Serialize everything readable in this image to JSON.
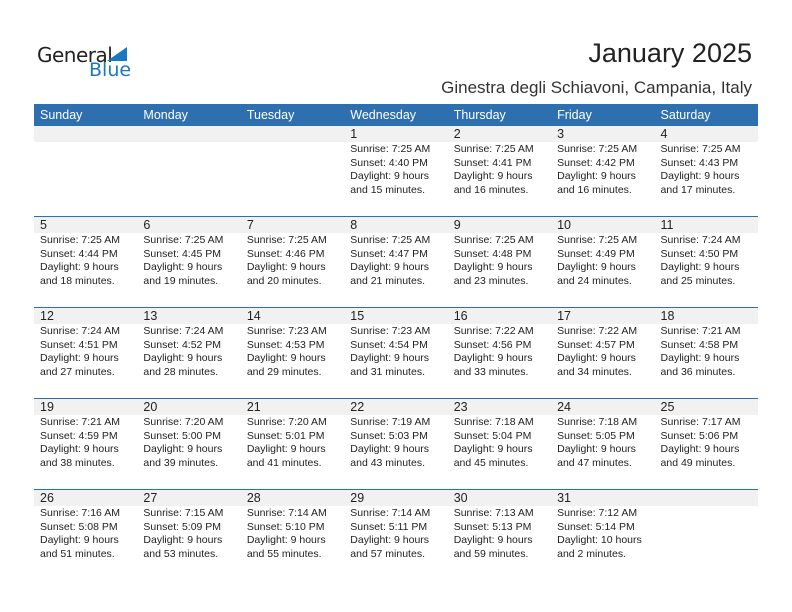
{
  "logo": {
    "text1": "General",
    "text2": "Blue"
  },
  "title": "January 2025",
  "subtitle": "Ginestra degli Schiavoni, Campania, Italy",
  "colors": {
    "header": "#2e6fb0",
    "day_band": "#f1f1f1",
    "logo_blue": "#1a78c2"
  },
  "weekdays": [
    "Sunday",
    "Monday",
    "Tuesday",
    "Wednesday",
    "Thursday",
    "Friday",
    "Saturday"
  ],
  "weeks": [
    [
      null,
      null,
      null,
      {
        "day": "1",
        "sunrise": "Sunrise: 7:25 AM",
        "sunset": "Sunset: 4:40 PM",
        "daylight1": "Daylight: 9 hours",
        "daylight2": "and 15 minutes."
      },
      {
        "day": "2",
        "sunrise": "Sunrise: 7:25 AM",
        "sunset": "Sunset: 4:41 PM",
        "daylight1": "Daylight: 9 hours",
        "daylight2": "and 16 minutes."
      },
      {
        "day": "3",
        "sunrise": "Sunrise: 7:25 AM",
        "sunset": "Sunset: 4:42 PM",
        "daylight1": "Daylight: 9 hours",
        "daylight2": "and 16 minutes."
      },
      {
        "day": "4",
        "sunrise": "Sunrise: 7:25 AM",
        "sunset": "Sunset: 4:43 PM",
        "daylight1": "Daylight: 9 hours",
        "daylight2": "and 17 minutes."
      }
    ],
    [
      {
        "day": "5",
        "sunrise": "Sunrise: 7:25 AM",
        "sunset": "Sunset: 4:44 PM",
        "daylight1": "Daylight: 9 hours",
        "daylight2": "and 18 minutes."
      },
      {
        "day": "6",
        "sunrise": "Sunrise: 7:25 AM",
        "sunset": "Sunset: 4:45 PM",
        "daylight1": "Daylight: 9 hours",
        "daylight2": "and 19 minutes."
      },
      {
        "day": "7",
        "sunrise": "Sunrise: 7:25 AM",
        "sunset": "Sunset: 4:46 PM",
        "daylight1": "Daylight: 9 hours",
        "daylight2": "and 20 minutes."
      },
      {
        "day": "8",
        "sunrise": "Sunrise: 7:25 AM",
        "sunset": "Sunset: 4:47 PM",
        "daylight1": "Daylight: 9 hours",
        "daylight2": "and 21 minutes."
      },
      {
        "day": "9",
        "sunrise": "Sunrise: 7:25 AM",
        "sunset": "Sunset: 4:48 PM",
        "daylight1": "Daylight: 9 hours",
        "daylight2": "and 23 minutes."
      },
      {
        "day": "10",
        "sunrise": "Sunrise: 7:25 AM",
        "sunset": "Sunset: 4:49 PM",
        "daylight1": "Daylight: 9 hours",
        "daylight2": "and 24 minutes."
      },
      {
        "day": "11",
        "sunrise": "Sunrise: 7:24 AM",
        "sunset": "Sunset: 4:50 PM",
        "daylight1": "Daylight: 9 hours",
        "daylight2": "and 25 minutes."
      }
    ],
    [
      {
        "day": "12",
        "sunrise": "Sunrise: 7:24 AM",
        "sunset": "Sunset: 4:51 PM",
        "daylight1": "Daylight: 9 hours",
        "daylight2": "and 27 minutes."
      },
      {
        "day": "13",
        "sunrise": "Sunrise: 7:24 AM",
        "sunset": "Sunset: 4:52 PM",
        "daylight1": "Daylight: 9 hours",
        "daylight2": "and 28 minutes."
      },
      {
        "day": "14",
        "sunrise": "Sunrise: 7:23 AM",
        "sunset": "Sunset: 4:53 PM",
        "daylight1": "Daylight: 9 hours",
        "daylight2": "and 29 minutes."
      },
      {
        "day": "15",
        "sunrise": "Sunrise: 7:23 AM",
        "sunset": "Sunset: 4:54 PM",
        "daylight1": "Daylight: 9 hours",
        "daylight2": "and 31 minutes."
      },
      {
        "day": "16",
        "sunrise": "Sunrise: 7:22 AM",
        "sunset": "Sunset: 4:56 PM",
        "daylight1": "Daylight: 9 hours",
        "daylight2": "and 33 minutes."
      },
      {
        "day": "17",
        "sunrise": "Sunrise: 7:22 AM",
        "sunset": "Sunset: 4:57 PM",
        "daylight1": "Daylight: 9 hours",
        "daylight2": "and 34 minutes."
      },
      {
        "day": "18",
        "sunrise": "Sunrise: 7:21 AM",
        "sunset": "Sunset: 4:58 PM",
        "daylight1": "Daylight: 9 hours",
        "daylight2": "and 36 minutes."
      }
    ],
    [
      {
        "day": "19",
        "sunrise": "Sunrise: 7:21 AM",
        "sunset": "Sunset: 4:59 PM",
        "daylight1": "Daylight: 9 hours",
        "daylight2": "and 38 minutes."
      },
      {
        "day": "20",
        "sunrise": "Sunrise: 7:20 AM",
        "sunset": "Sunset: 5:00 PM",
        "daylight1": "Daylight: 9 hours",
        "daylight2": "and 39 minutes."
      },
      {
        "day": "21",
        "sunrise": "Sunrise: 7:20 AM",
        "sunset": "Sunset: 5:01 PM",
        "daylight1": "Daylight: 9 hours",
        "daylight2": "and 41 minutes."
      },
      {
        "day": "22",
        "sunrise": "Sunrise: 7:19 AM",
        "sunset": "Sunset: 5:03 PM",
        "daylight1": "Daylight: 9 hours",
        "daylight2": "and 43 minutes."
      },
      {
        "day": "23",
        "sunrise": "Sunrise: 7:18 AM",
        "sunset": "Sunset: 5:04 PM",
        "daylight1": "Daylight: 9 hours",
        "daylight2": "and 45 minutes."
      },
      {
        "day": "24",
        "sunrise": "Sunrise: 7:18 AM",
        "sunset": "Sunset: 5:05 PM",
        "daylight1": "Daylight: 9 hours",
        "daylight2": "and 47 minutes."
      },
      {
        "day": "25",
        "sunrise": "Sunrise: 7:17 AM",
        "sunset": "Sunset: 5:06 PM",
        "daylight1": "Daylight: 9 hours",
        "daylight2": "and 49 minutes."
      }
    ],
    [
      {
        "day": "26",
        "sunrise": "Sunrise: 7:16 AM",
        "sunset": "Sunset: 5:08 PM",
        "daylight1": "Daylight: 9 hours",
        "daylight2": "and 51 minutes."
      },
      {
        "day": "27",
        "sunrise": "Sunrise: 7:15 AM",
        "sunset": "Sunset: 5:09 PM",
        "daylight1": "Daylight: 9 hours",
        "daylight2": "and 53 minutes."
      },
      {
        "day": "28",
        "sunrise": "Sunrise: 7:14 AM",
        "sunset": "Sunset: 5:10 PM",
        "daylight1": "Daylight: 9 hours",
        "daylight2": "and 55 minutes."
      },
      {
        "day": "29",
        "sunrise": "Sunrise: 7:14 AM",
        "sunset": "Sunset: 5:11 PM",
        "daylight1": "Daylight: 9 hours",
        "daylight2": "and 57 minutes."
      },
      {
        "day": "30",
        "sunrise": "Sunrise: 7:13 AM",
        "sunset": "Sunset: 5:13 PM",
        "daylight1": "Daylight: 9 hours",
        "daylight2": "and 59 minutes."
      },
      {
        "day": "31",
        "sunrise": "Sunrise: 7:12 AM",
        "sunset": "Sunset: 5:14 PM",
        "daylight1": "Daylight: 10 hours",
        "daylight2": "and 2 minutes."
      },
      null
    ]
  ]
}
